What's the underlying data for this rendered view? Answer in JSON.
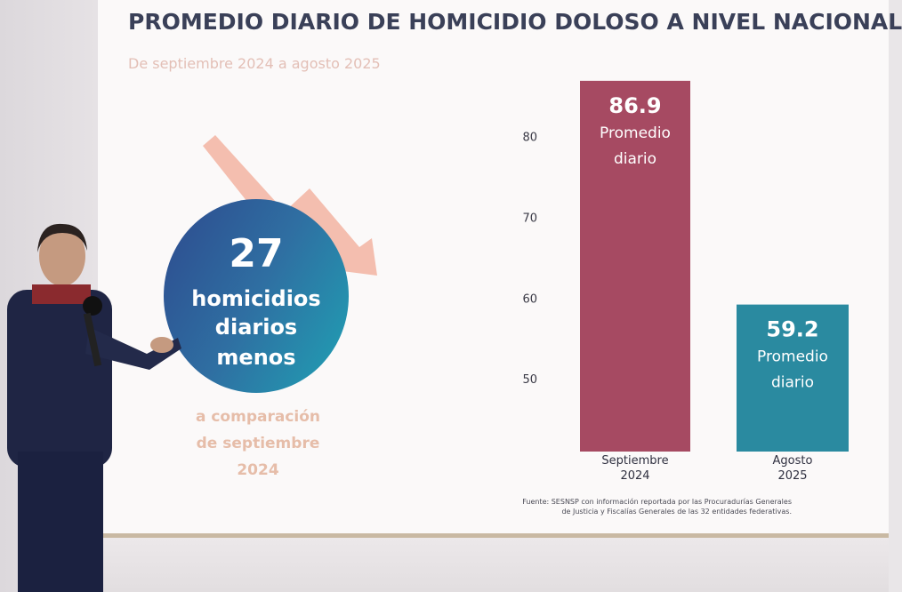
{
  "slide": {
    "title": "PROMEDIO DIARIO DE HOMICIDIO DOLOSO A NIVEL NACIONAL",
    "subtitle": "De septiembre 2024 a agosto 2025",
    "highlight": {
      "number": "27",
      "line1": "homicidios",
      "line2": "diarios",
      "line3": "menos",
      "comparison_line1": "a comparación",
      "comparison_line2": "de septiembre",
      "comparison_line3": "2024"
    },
    "source_line1": "Fuente: SESNSP con información reportada por las Procuradurías Generales",
    "source_line2": "de Justicia y Fiscalías Generales de las 32 entidades federativas."
  },
  "colors": {
    "title": "#3a4058",
    "subtitle": "#e3bfb6",
    "bar_sept": "#a64a62",
    "bar_aug": "#2a8aa0",
    "arrow": "#f3b9a8",
    "comparison": "#e6bda9"
  },
  "chart_data": {
    "type": "bar",
    "categories": [
      "Septiembre 2024",
      "Agosto 2025"
    ],
    "category_lines": [
      [
        "Septiembre",
        "2024"
      ],
      [
        "Agosto",
        "2025"
      ]
    ],
    "values": [
      86.9,
      59.2
    ],
    "data_labels": [
      "86.9",
      "59.2"
    ],
    "bar_caption_line1": "Promedio",
    "bar_caption_line2": "diario",
    "yticks": [
      50,
      60,
      70,
      80
    ],
    "ylim": [
      41,
      87
    ],
    "grid": false,
    "legend": "none"
  }
}
